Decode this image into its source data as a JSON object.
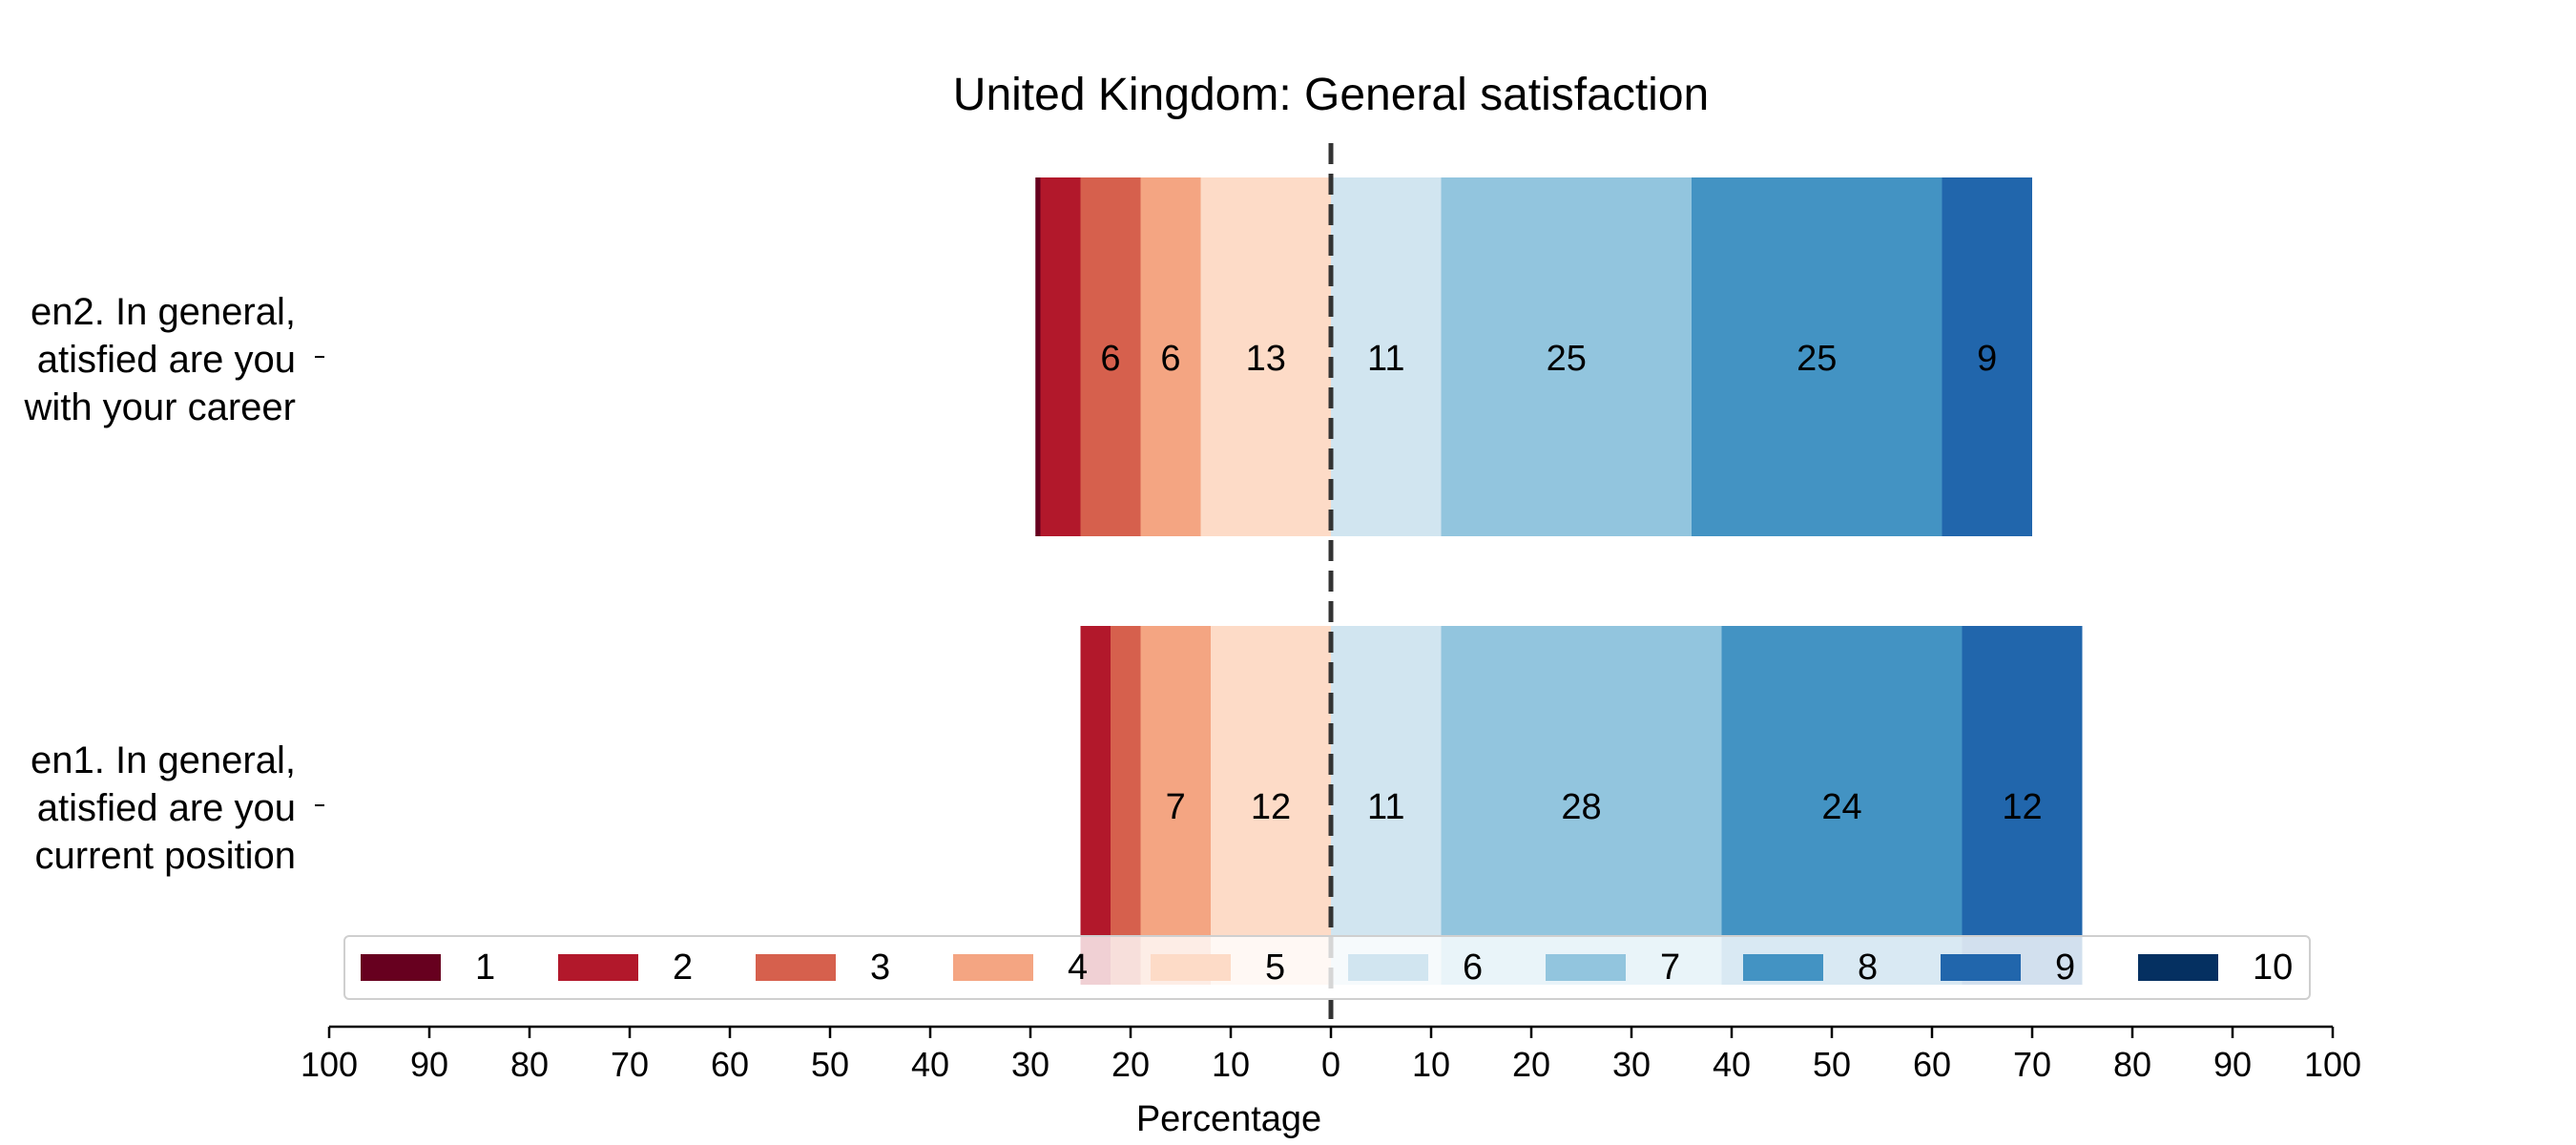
{
  "chart_data": {
    "type": "bar",
    "orientation": "horizontal-diverging",
    "title": "United Kingdom: General satisfaction",
    "xlabel": "Percentage",
    "xlim": [
      -100,
      100
    ],
    "x_ticks": [
      "100",
      "90",
      "80",
      "70",
      "60",
      "50",
      "40",
      "30",
      "20",
      "10",
      "0",
      "10",
      "20",
      "30",
      "40",
      "50",
      "60",
      "70",
      "80",
      "90",
      "100"
    ],
    "categories": [
      {
        "lines": [
          "en2. In general,",
          "atisfied are you",
          "with your career"
        ]
      },
      {
        "lines": [
          "en1. In general,",
          "atisfied are you",
          "current position"
        ]
      }
    ],
    "legend_labels": [
      "1",
      "2",
      "3",
      "4",
      "5",
      "6",
      "7",
      "8",
      "9",
      "10"
    ],
    "colors": [
      "#67001f",
      "#b2182b",
      "#d6604d",
      "#f4a582",
      "#fddbc7",
      "#d1e5f0",
      "#92c5de",
      "#4393c3",
      "#2166ac",
      "#053061"
    ],
    "series_values": [
      [
        0.5,
        4,
        6,
        6,
        13,
        11,
        25,
        25,
        9,
        0
      ],
      [
        0,
        3,
        3,
        7,
        12,
        11,
        28,
        24,
        12,
        0
      ]
    ],
    "segment_labels": [
      [
        "",
        "",
        "6",
        "6",
        "13",
        "11",
        "25",
        "25",
        "9",
        ""
      ],
      [
        "",
        "",
        "",
        "7",
        "12",
        "11",
        "28",
        "24",
        "12",
        ""
      ]
    ],
    "legend_placement": "bottom-center, overlapping lower bar"
  }
}
